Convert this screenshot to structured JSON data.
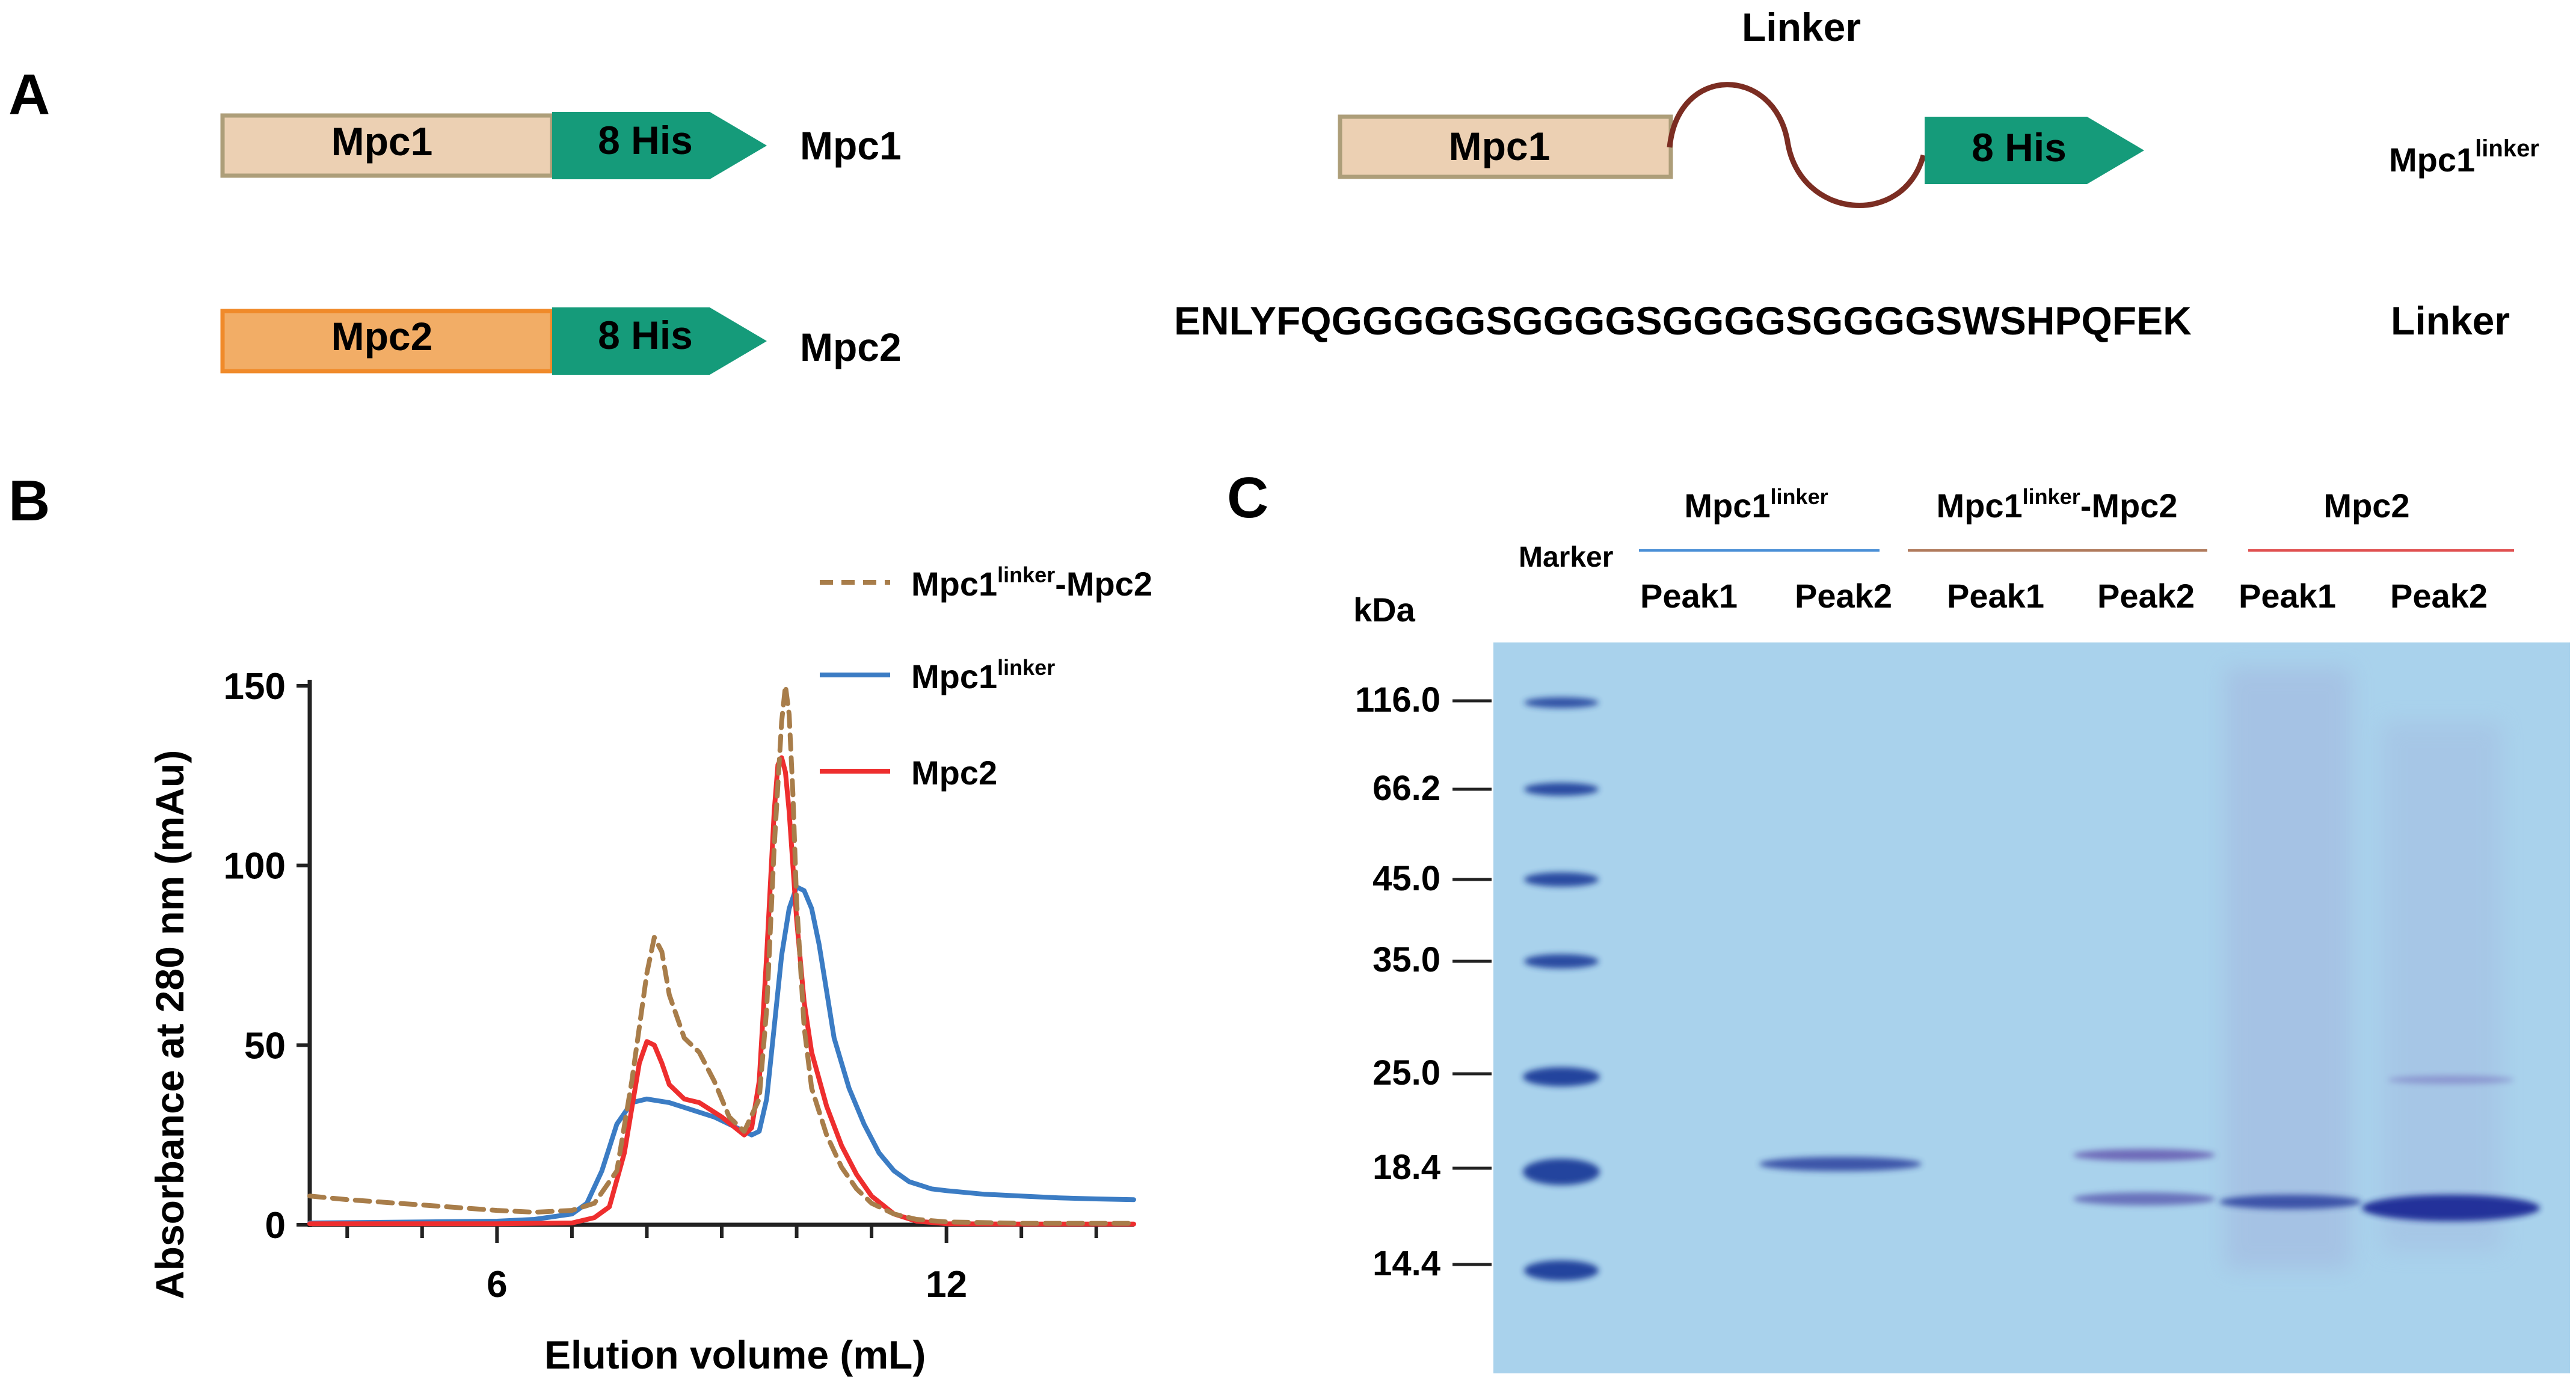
{
  "panelA": {
    "label": "A",
    "mpc1_construct": {
      "box": "Mpc1",
      "tag": "8 His",
      "name": "Mpc1"
    },
    "mpc2_construct": {
      "box": "Mpc2",
      "tag": "8 His",
      "name": "Mpc2"
    },
    "linker_construct": {
      "box": "Mpc1",
      "tag": "8 His",
      "linker_title": "Linker",
      "name_base": "Mpc1",
      "name_sup": "linker"
    },
    "sequence": "ENLYFQGGGGGSGGGGSGGGGSGGGGSWSHPQFEK",
    "sequence_label": "Linker"
  },
  "panelB": {
    "label": "B",
    "legend": [
      {
        "base": "Mpc1",
        "sup": "linker",
        "suffix": "-Mpc2",
        "color": "#a87d4a",
        "style": "dashed"
      },
      {
        "base": "Mpc1",
        "sup": "linker",
        "suffix": "",
        "color": "#3b7cc4",
        "style": "solid"
      },
      {
        "base": "Mpc2",
        "sup": "",
        "suffix": "",
        "color": "#ee2e2e",
        "style": "solid"
      }
    ]
  },
  "chart_data": {
    "type": "line",
    "xlabel": "Elution volume (mL)",
    "ylabel": "Absorbance at 280 nm (mAu)",
    "xlim": [
      3.5,
      14.5
    ],
    "ylim": [
      0,
      150
    ],
    "xticks": [
      6,
      12
    ],
    "yticks": [
      0,
      50,
      100,
      150
    ],
    "series": [
      {
        "name": "Mpc1linker-Mpc2",
        "x": [
          3.5,
          4,
          5,
          6,
          6.5,
          7,
          7.3,
          7.6,
          7.8,
          8.0,
          8.1,
          8.2,
          8.3,
          8.5,
          8.7,
          8.9,
          9.1,
          9.3,
          9.5,
          9.6,
          9.7,
          9.8,
          9.85,
          9.9,
          9.95,
          10.0,
          10.1,
          10.2,
          10.4,
          10.6,
          10.8,
          11.0,
          11.3,
          11.6,
          12,
          13,
          14.5
        ],
        "y": [
          8,
          7,
          5.5,
          4,
          3.5,
          4,
          6,
          15,
          40,
          70,
          80,
          76,
          64,
          52,
          48,
          40,
          30,
          26,
          35,
          60,
          105,
          140,
          150,
          142,
          120,
          90,
          55,
          38,
          25,
          16,
          10,
          6,
          3,
          1.5,
          0.8,
          0.4,
          0.4
        ]
      },
      {
        "name": "Mpc1linker",
        "x": [
          3.5,
          5,
          6,
          6.5,
          7,
          7.2,
          7.4,
          7.6,
          7.8,
          8.0,
          8.3,
          8.6,
          8.9,
          9.2,
          9.4,
          9.5,
          9.6,
          9.7,
          9.8,
          9.9,
          10.0,
          10.1,
          10.2,
          10.3,
          10.4,
          10.5,
          10.7,
          10.9,
          11.1,
          11.3,
          11.5,
          11.8,
          12.0,
          12.5,
          13,
          13.5,
          14,
          14.5
        ],
        "y": [
          0.5,
          0.8,
          1,
          1.5,
          3,
          6,
          15,
          28,
          34,
          35,
          34,
          32,
          30,
          27,
          25,
          26,
          35,
          55,
          75,
          88,
          94,
          93,
          88,
          78,
          65,
          52,
          38,
          28,
          20,
          15,
          12,
          10,
          9.5,
          8.5,
          8,
          7.5,
          7.2,
          7
        ]
      },
      {
        "name": "Mpc2",
        "x": [
          3.5,
          6,
          7,
          7.3,
          7.5,
          7.7,
          7.9,
          8.0,
          8.1,
          8.2,
          8.3,
          8.5,
          8.7,
          9.0,
          9.3,
          9.4,
          9.5,
          9.6,
          9.7,
          9.75,
          9.8,
          9.85,
          9.9,
          10.0,
          10.1,
          10.2,
          10.4,
          10.6,
          10.8,
          11.0,
          11.3,
          11.6,
          12.0,
          13,
          14.5
        ],
        "y": [
          0.3,
          0.3,
          0.5,
          2,
          5,
          20,
          45,
          51,
          50,
          45,
          39,
          35,
          34,
          30,
          25,
          27,
          40,
          75,
          115,
          128,
          130,
          126,
          115,
          85,
          62,
          48,
          33,
          22,
          14,
          8,
          3,
          1,
          0.3,
          0.2,
          0.2
        ]
      }
    ]
  },
  "panelC": {
    "label": "C",
    "kda_label": "kDa",
    "marker_label": "Marker",
    "markers": [
      "116.0",
      "66.2",
      "45.0",
      "35.0",
      "25.0",
      "18.4",
      "14.4"
    ],
    "groups": [
      {
        "base": "Mpc1",
        "sup": "linker",
        "suffix": "",
        "line_color": "#4a8fd6"
      },
      {
        "base": "Mpc1",
        "sup": "linker",
        "suffix": "-Mpc2",
        "line_color": "#b07a5c"
      },
      {
        "base": "Mpc2",
        "sup": "",
        "suffix": "",
        "line_color": "#e05050"
      }
    ],
    "lanes": [
      "Peak1",
      "Peak2",
      "Peak1",
      "Peak2",
      "Peak1",
      "Peak2"
    ],
    "gel_color": "#a9d2ec",
    "band_color": "#1d3c9a"
  }
}
